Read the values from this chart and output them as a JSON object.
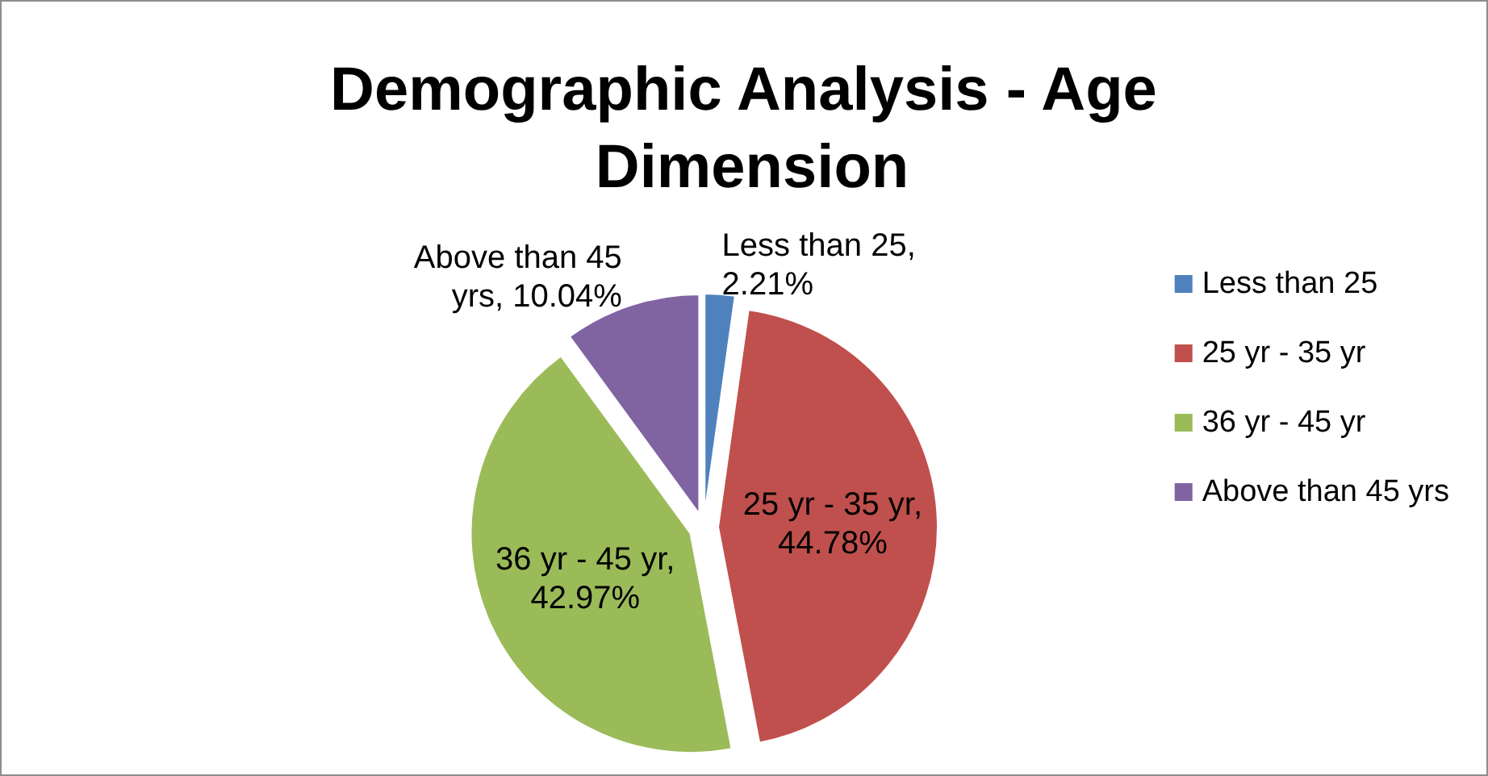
{
  "chart_data": {
    "type": "pie",
    "title": "Demographic Analysis - Age Dimension",
    "categories": [
      "Less than 25",
      "25 yr - 35 yr",
      "36 yr - 45 yr",
      "Above than 45 yrs"
    ],
    "values": [
      2.21,
      44.78,
      42.97,
      10.04
    ],
    "colors": [
      "#4f81bd",
      "#c0504d",
      "#9bbb59",
      "#8064a2"
    ],
    "value_labels": [
      "Less than 25, 2.21%",
      "25 yr - 35 yr, 44.78%",
      "36 yr - 45 yr, 42.97%",
      "Above than 45 yrs, 10.04%"
    ],
    "legend": "right"
  }
}
